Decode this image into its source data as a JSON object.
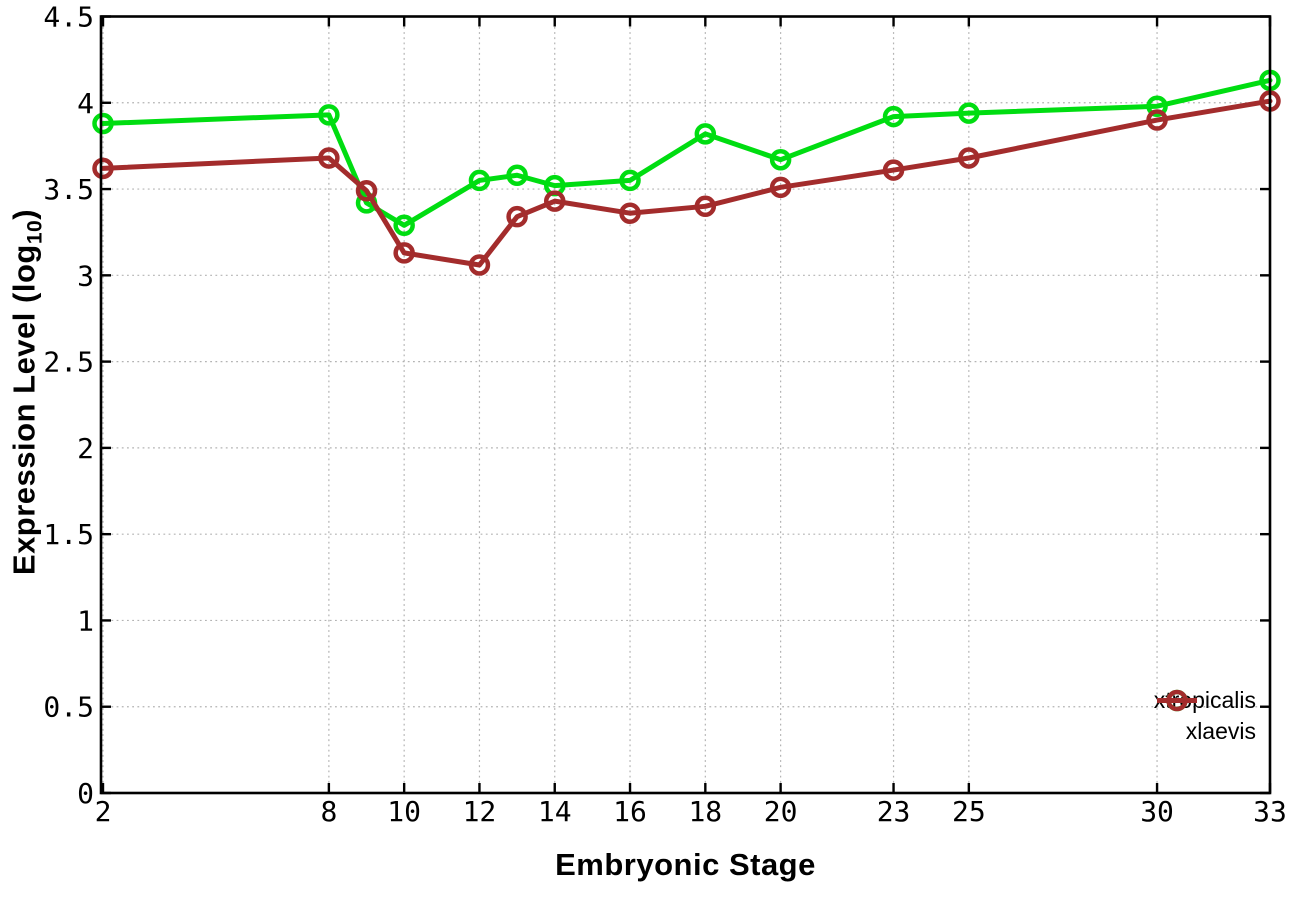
{
  "chart_data": {
    "type": "line",
    "title": "",
    "xlabel": "Embryonic Stage",
    "ylabel": "Expression Level (log10)",
    "ylabel_parts": {
      "base": "Expression Level (log",
      "sub": "10",
      "close": ")"
    },
    "x": [
      2,
      8,
      9,
      10,
      12,
      13,
      14,
      16,
      18,
      20,
      23,
      25,
      30,
      33
    ],
    "series": [
      {
        "name": "xtropicalis",
        "color": "#00dd11",
        "values": [
          3.88,
          3.93,
          3.42,
          3.29,
          3.55,
          3.58,
          3.52,
          3.55,
          3.82,
          3.67,
          3.92,
          3.94,
          3.98,
          4.13
        ]
      },
      {
        "name": "xlaevis",
        "color": "#a32c2c",
        "values": [
          3.62,
          3.68,
          3.49,
          3.13,
          3.06,
          3.34,
          3.43,
          3.36,
          3.4,
          3.51,
          3.61,
          3.68,
          3.9,
          4.01
        ]
      }
    ],
    "xlim": [
      2,
      33
    ],
    "ylim": [
      0,
      4.5
    ],
    "xticks": [
      2,
      8,
      10,
      12,
      14,
      16,
      18,
      20,
      23,
      25,
      30,
      33
    ],
    "xtick_labels": [
      "2",
      "8",
      "10",
      "12",
      "14",
      "16",
      "18",
      "20",
      "23",
      "25",
      "30",
      "33"
    ],
    "yticks": [
      0,
      0.5,
      1,
      1.5,
      2,
      2.5,
      3,
      3.5,
      4,
      4.5
    ],
    "ytick_labels": [
      "0",
      "0.5",
      "1",
      "1.5",
      "2",
      "2.5",
      "3",
      "3.5",
      "4",
      "4.5"
    ],
    "grid": true,
    "grid_color": "#a6a6a6",
    "border_color": "#000000",
    "background": "#ffffff",
    "marker": "open-circle-with-line",
    "legend_position": "inside-bottom-right"
  }
}
